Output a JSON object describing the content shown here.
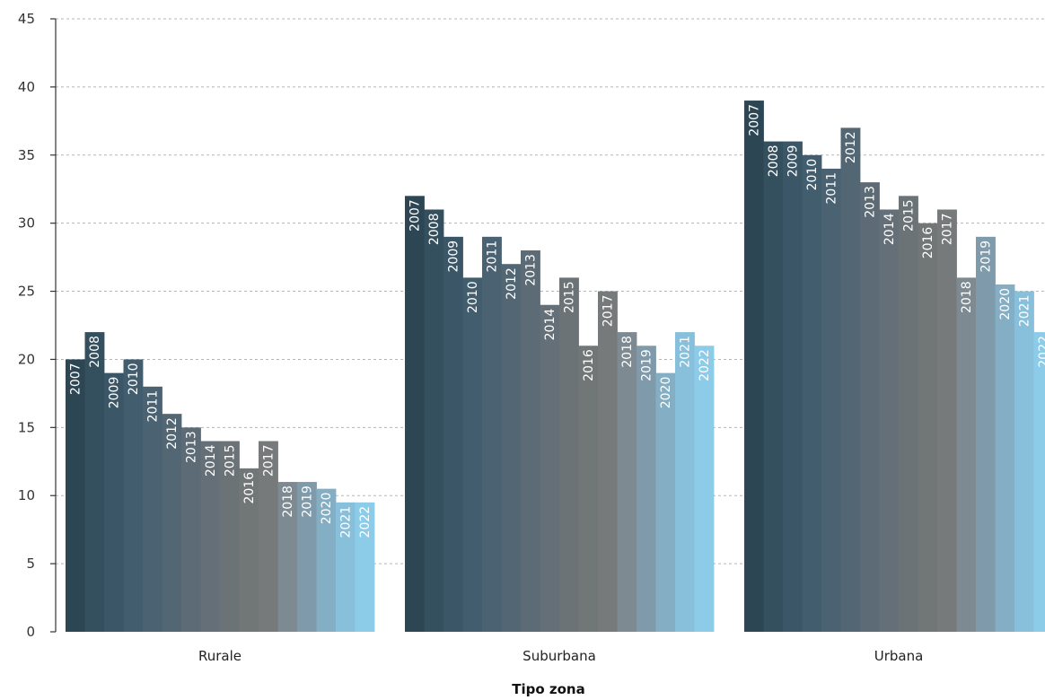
{
  "chart_data": {
    "type": "bar",
    "title": "",
    "xlabel": "Tipo zona",
    "ylabel": "",
    "ylim": [
      0,
      45
    ],
    "yticks": [
      0,
      5,
      10,
      15,
      20,
      25,
      30,
      35,
      40,
      45
    ],
    "grid": true,
    "legend": "none (year labels printed vertically on each bar)",
    "categories": [
      "Rurale",
      "Suburbana",
      "Urbana"
    ],
    "series": [
      {
        "name": "2007",
        "color": "#2d4654",
        "values": [
          20,
          32,
          39
        ]
      },
      {
        "name": "2008",
        "color": "#344f5e",
        "values": [
          22,
          31,
          36
        ]
      },
      {
        "name": "2009",
        "color": "#3a5667",
        "values": [
          19,
          29,
          36
        ]
      },
      {
        "name": "2010",
        "color": "#425d6e",
        "values": [
          20,
          26,
          35
        ]
      },
      {
        "name": "2011",
        "color": "#4a6272",
        "values": [
          18,
          29,
          34
        ]
      },
      {
        "name": "2012",
        "color": "#536673",
        "values": [
          16,
          27,
          37
        ]
      },
      {
        "name": "2013",
        "color": "#5c6b75",
        "values": [
          15,
          28,
          33
        ]
      },
      {
        "name": "2014",
        "color": "#646f77",
        "values": [
          14,
          24,
          31
        ]
      },
      {
        "name": "2015",
        "color": "#6b7377",
        "values": [
          14,
          26,
          32
        ]
      },
      {
        "name": "2016",
        "color": "#717677",
        "values": [
          12,
          21,
          30
        ]
      },
      {
        "name": "2017",
        "color": "#767a7b",
        "values": [
          14,
          25,
          31
        ]
      },
      {
        "name": "2018",
        "color": "#7d8a92",
        "values": [
          11,
          22,
          26
        ]
      },
      {
        "name": "2019",
        "color": "#7f9aaa",
        "values": [
          11,
          21,
          29
        ]
      },
      {
        "name": "2020",
        "color": "#83aec4",
        "values": [
          10.5,
          19,
          25.5
        ]
      },
      {
        "name": "2021",
        "color": "#88c0dc",
        "values": [
          9.5,
          22,
          25
        ]
      },
      {
        "name": "2022",
        "color": "#8ccce9",
        "values": [
          9.5,
          21,
          22
        ]
      }
    ]
  }
}
